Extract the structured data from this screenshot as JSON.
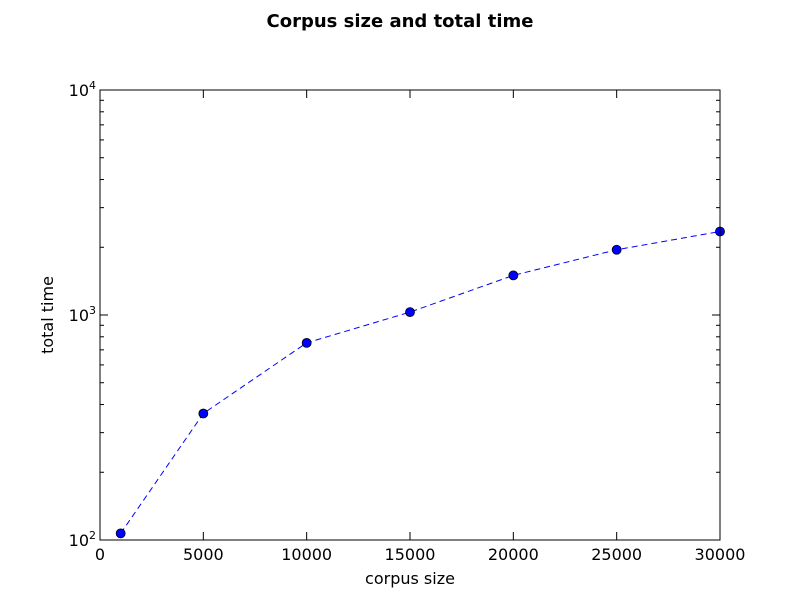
{
  "chart_data": {
    "type": "line",
    "title": "Corpus size and total time",
    "xlabel": "corpus size",
    "ylabel": "total time",
    "x": [
      1000,
      5000,
      10000,
      15000,
      20000,
      25000,
      30000
    ],
    "series": [
      {
        "values": [
          107,
          365,
          752,
          1030,
          1500,
          1950,
          2350
        ],
        "color": "#0000ff",
        "marker": "circle",
        "line_style": "dashed"
      }
    ],
    "xlim": [
      0,
      30000
    ],
    "ylim": [
      100,
      10000
    ],
    "yscale": "log",
    "x_ticks": [
      0,
      5000,
      10000,
      15000,
      20000,
      25000,
      30000
    ],
    "x_tick_labels": [
      "0",
      "5000",
      "10000",
      "15000",
      "20000",
      "25000",
      "30000"
    ],
    "y_ticks": [
      100,
      1000,
      10000
    ],
    "y_tick_labels": [
      {
        "base": "10",
        "exp": "2"
      },
      {
        "base": "10",
        "exp": "3"
      },
      {
        "base": "10",
        "exp": "4"
      }
    ],
    "grid": false,
    "legend": "none"
  }
}
